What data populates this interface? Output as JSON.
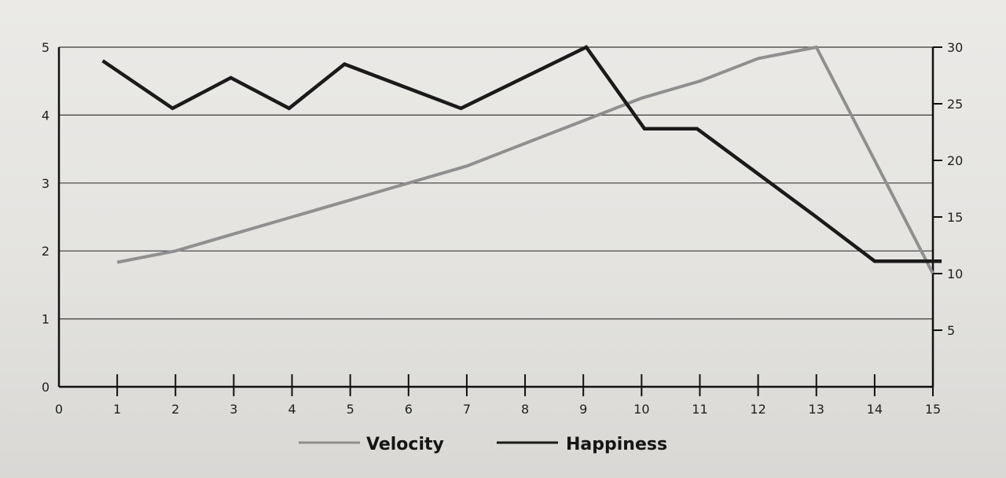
{
  "chart_data": {
    "type": "line",
    "categories": [
      "0",
      "1",
      "2",
      "3",
      "4",
      "5",
      "6",
      "7",
      "8",
      "9",
      "10",
      "11",
      "12",
      "13",
      "14",
      "15"
    ],
    "x_ticks": [
      "0",
      "1",
      "2",
      "3",
      "4",
      "5",
      "6",
      "7",
      "8",
      "9",
      "10",
      "11",
      "12",
      "13",
      "14",
      "15"
    ],
    "xlim": [
      0,
      15
    ],
    "y_left_ticks": [
      "0",
      "1",
      "2",
      "3",
      "4",
      "5"
    ],
    "ylim_left": [
      0,
      5
    ],
    "y_right_ticks": [
      "5",
      "10",
      "15",
      "20",
      "25",
      "30"
    ],
    "ylim_right": [
      0,
      30
    ],
    "grid": true,
    "legend_position": "bottom-center",
    "series": [
      {
        "name": "Velocity",
        "axis": "right",
        "color": "#8f8f8f",
        "x": [
          1,
          2,
          3,
          4,
          5,
          6,
          7,
          8,
          9,
          10,
          11,
          12,
          13,
          14,
          15
        ],
        "values": [
          11,
          12,
          13.5,
          15,
          16.5,
          18,
          19.5,
          21.5,
          23.5,
          25.5,
          27,
          29,
          30,
          20,
          10
        ]
      },
      {
        "name": "Happiness",
        "axis": "left",
        "color": "#1a1a1a",
        "x": [
          0.75,
          1.95,
          2.95,
          3.95,
          4.9,
          6.9,
          9.05,
          10.05,
          10.95,
          13.0,
          14.0,
          15.15
        ],
        "values": [
          4.8,
          4.1,
          4.55,
          4.1,
          4.75,
          4.1,
          5.0,
          3.8,
          3.8,
          2.5,
          1.85,
          1.85
        ]
      }
    ]
  },
  "legend": {
    "velocity_label": "Velocity",
    "happiness_label": "Happiness"
  }
}
